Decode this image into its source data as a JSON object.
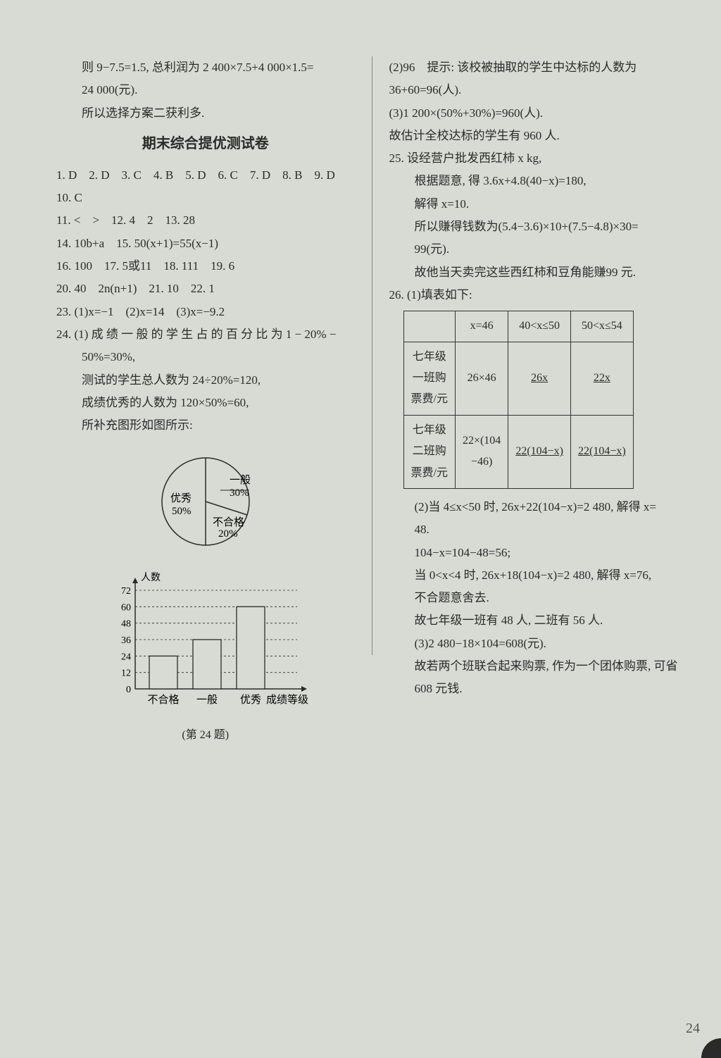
{
  "left": {
    "pre": [
      "则 9−7.5=1.5, 总利润为 2 400×7.5+4 000×1.5=",
      "24 000(元).",
      "所以选择方案二获利多."
    ],
    "title": "期末综合提优测试卷",
    "answers": [
      "1. D　2. D　3. C　4. B　5. D　6. C　7. D　8. B　9. D",
      "10. C",
      "11. <　>　12. 4　2　13. 28",
      "14. 10b+a　15. 50(x+1)=55(x−1)",
      "16. 100　17. 5或11　18. 111　19. 6",
      "20. 40　2n(n+1)　21. 10　22. 1",
      "23. (1)x=−1　(2)x=14　(3)x=−9.2"
    ],
    "q24": {
      "head": "24. (1) 成 绩 一 般 的 学 生 占 的 百 分 比 为 1 − 20% −",
      "lines": [
        "50%=30%,",
        "测试的学生总人数为 24÷20%=120,",
        "成绩优秀的人数为 120×50%=60,",
        "所补充图形如图所示:"
      ]
    },
    "pie": {
      "slices": [
        {
          "label": "一般",
          "pct": "30%",
          "start": -90,
          "end": 18,
          "color": "#d8dbd4"
        },
        {
          "label": "不合格",
          "pct": "20%",
          "start": 18,
          "end": 90,
          "color": "#d8dbd4"
        },
        {
          "label": "优秀",
          "pct": "50%",
          "start": 90,
          "end": 270,
          "color": "#d8dbd4"
        }
      ],
      "stroke": "#2a2a2a",
      "labels": {
        "yiban": "一般",
        "yiban_pct": "30%",
        "buhege": "不合格",
        "buhege_pct": "20%",
        "youxiu": "优秀",
        "youxiu_pct": "50%"
      }
    },
    "bar": {
      "ylabel": "人数",
      "yticks": [
        "0",
        "12",
        "24",
        "36",
        "48",
        "60",
        "72"
      ],
      "categories": [
        "不合格",
        "一般",
        "优秀",
        "成绩等级"
      ],
      "values": [
        24,
        36,
        60
      ],
      "ymax": 72,
      "bar_color": "#d8dbd4",
      "axis_color": "#2a2a2a",
      "grid_dash": "3,3"
    },
    "fig_caption": "(第 24 题)"
  },
  "right": {
    "lines1": [
      "(2)96　提示: 该校被抽取的学生中达标的人数为",
      "36+60=96(人).",
      "(3)1 200×(50%+30%)=960(人).",
      "故估计全校达标的学生有 960 人."
    ],
    "q25": [
      "25. 设经营户批发西红柿 x kg,",
      "根据题意, 得 3.6x+4.8(40−x)=180,",
      "解得 x=10.",
      "所以赚得钱数为(5.4−3.6)×10+(7.5−4.8)×30=",
      "99(元).",
      "故他当天卖完这些西红柿和豆角能赚99 元."
    ],
    "q26_head": "26. (1)填表如下:",
    "table": {
      "header": [
        "",
        "x=46",
        "40<x≤50",
        "50<x≤54"
      ],
      "rows": [
        [
          "七年级\n一班购\n票费/元",
          "26×46",
          "26x",
          "22x"
        ],
        [
          "七年级\n二班购\n票费/元",
          "22×(104\n−46)",
          "22(104−x)",
          "22(104−x)"
        ]
      ],
      "underline_cols": [
        2,
        3
      ]
    },
    "lines2": [
      "(2)当 4≤x<50 时, 26x+22(104−x)=2 480, 解得 x=",
      "48.",
      "104−x=104−48=56;",
      "当 0<x<4 时, 26x+18(104−x)=2 480, 解得 x=76,",
      "不合题意舍去.",
      "故七年级一班有 48 人, 二班有 56 人.",
      "(3)2 480−18×104=608(元).",
      "故若两个班联合起来购票, 作为一个团体购票, 可省",
      "608 元钱."
    ]
  },
  "page_number": "24"
}
